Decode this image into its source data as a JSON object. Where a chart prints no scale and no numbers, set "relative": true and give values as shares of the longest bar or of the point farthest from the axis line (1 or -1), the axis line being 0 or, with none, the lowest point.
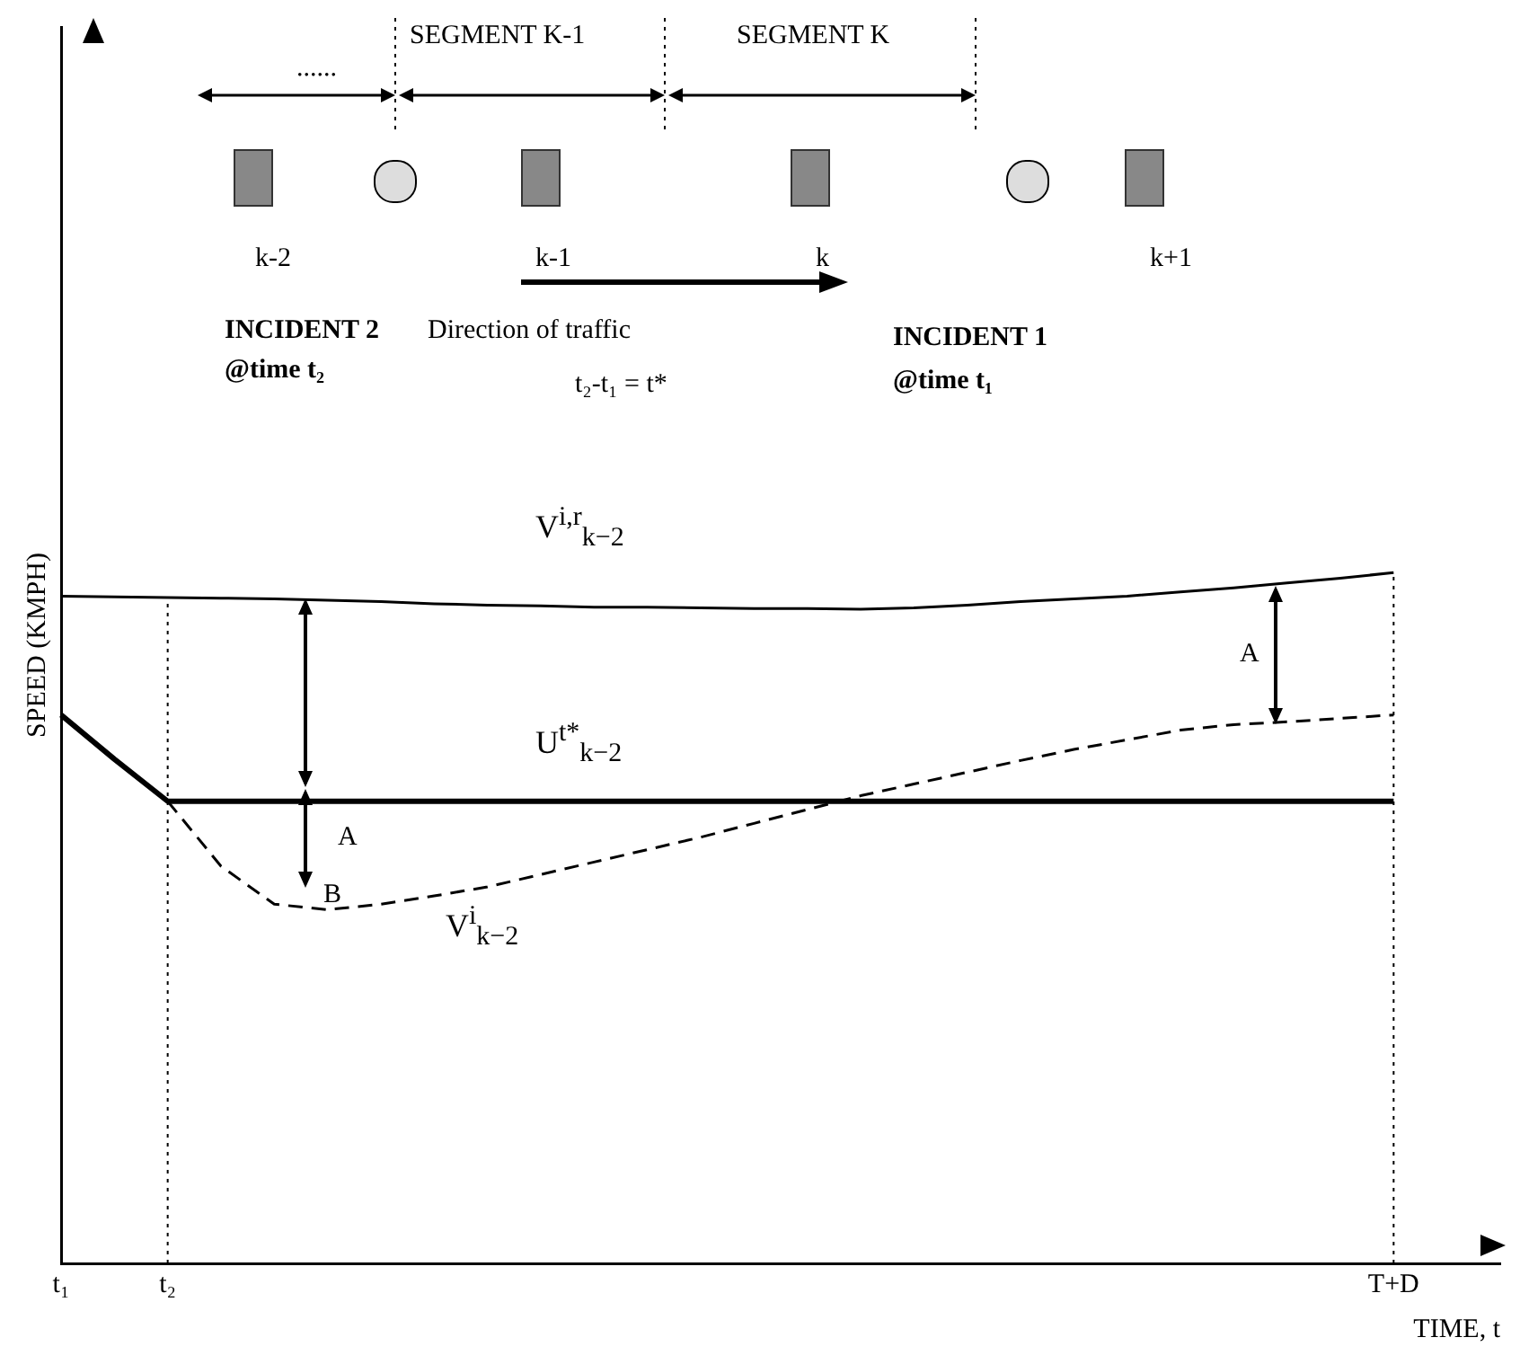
{
  "chart_data": {
    "type": "line",
    "relative": true,
    "xlabel": "TIME, t",
    "ylabel": "SPEED (KMPH)",
    "categories": [
      "t₁",
      null,
      "t₂",
      null,
      null,
      null,
      null,
      null,
      null,
      null,
      null,
      null,
      null,
      null,
      null,
      null,
      null,
      null,
      null,
      null,
      null,
      null,
      null,
      null,
      null,
      "T+D",
      null,
      null
    ],
    "grid": false,
    "legend": false,
    "marker": "none",
    "series": [
      {
        "name": "V$^{i,r}$$_{k−2}$",
        "color": "#000000",
        "line_style": "solid",
        "values": [
          0.966,
          0.965,
          0.964,
          0.963,
          0.962,
          0.96,
          0.958,
          0.955,
          0.953,
          0.952,
          0.95,
          0.95,
          0.949,
          0.948,
          0.948,
          0.947,
          0.949,
          0.953,
          0.958,
          0.962,
          0.966,
          0.972,
          0.978,
          0.985,
          0.992,
          1,
          null,
          null
        ]
      },
      {
        "name": "U$^{t*}$$_{k−2}$",
        "color": "#000000",
        "line_style": "solid",
        "values": [
          0.794,
          0.73,
          0.669,
          0.669,
          0.669,
          0.669,
          0.669,
          0.669,
          0.669,
          0.669,
          0.669,
          0.669,
          0.669,
          0.669,
          0.669,
          0.669,
          0.669,
          0.669,
          0.669,
          0.669,
          0.669,
          0.669,
          0.669,
          0.669,
          0.669,
          0.669,
          null,
          null
        ]
      },
      {
        "name": "V$^{i}$$_{k−2}$",
        "color": "#000000",
        "line_style": "dashed",
        "values": [
          null,
          null,
          0.669,
          0.575,
          0.52,
          0.512,
          0.52,
          0.532,
          0.545,
          0.563,
          0.581,
          0.599,
          0.617,
          0.637,
          0.657,
          0.677,
          0.694,
          0.711,
          0.728,
          0.744,
          0.758,
          0.772,
          0.78,
          0.784,
          0.789,
          0.794,
          null,
          null
        ]
      }
    ],
    "ref_lines": [
      {
        "axis": "x",
        "value": "t₂",
        "line_style": "dotted",
        "color": "#000000"
      },
      {
        "axis": "x",
        "value": "T+D",
        "line_style": "dotted",
        "color": "#000000"
      }
    ],
    "annotations": [
      "......",
      "SEGMENT K-1",
      "SEGMENT K",
      "k-2",
      "k-1",
      "k",
      "k+1",
      "INCIDENT 2",
      "Direction of traffic",
      "@time t₂",
      "t₂-t₁ = t*",
      "INCIDENT 1",
      "@time t₁",
      "A",
      "B",
      "A"
    ]
  }
}
